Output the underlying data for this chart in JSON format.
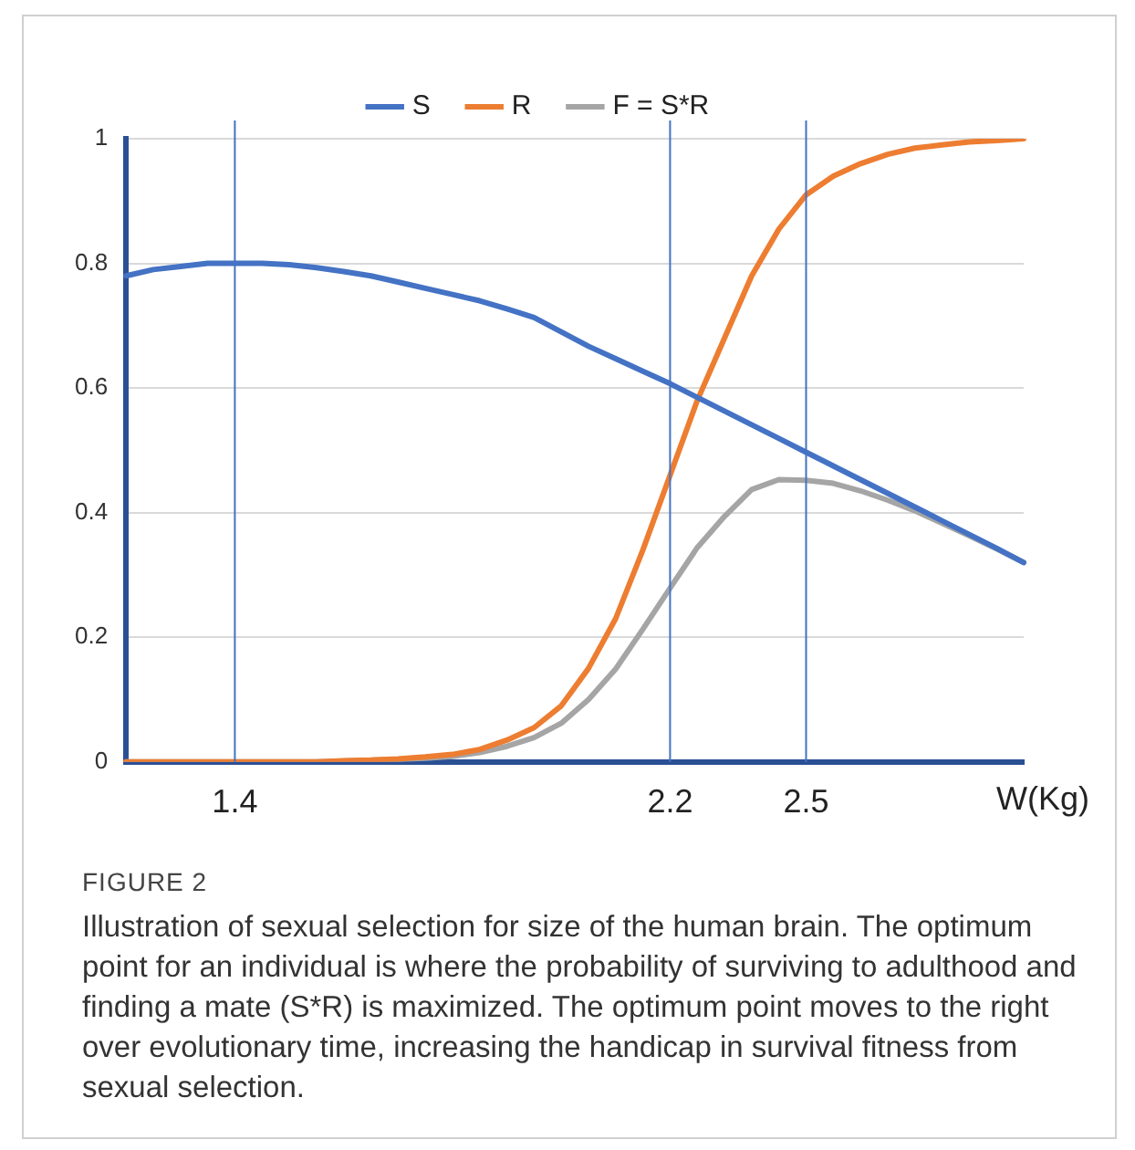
{
  "chart_data": {
    "type": "line",
    "xlabel": "W(Kg)",
    "categories": [
      null,
      null,
      null,
      null,
      "1.4",
      null,
      null,
      null,
      null,
      null,
      null,
      null,
      null,
      null,
      null,
      null,
      null,
      null,
      null,
      null,
      "2.2",
      null,
      null,
      null,
      null,
      "2.5",
      null,
      null,
      null,
      null,
      null,
      null,
      null,
      null
    ],
    "series": [
      {
        "name": "S",
        "color": "#4472c4",
        "values": [
          0.78,
          0.79,
          0.795,
          0.8,
          0.8,
          0.8,
          0.798,
          0.793,
          0.787,
          0.78,
          0.77,
          0.76,
          0.75,
          0.74,
          0.727,
          0.713,
          0.69,
          0.667,
          0.647,
          0.627,
          0.607,
          0.585,
          0.563,
          0.541,
          0.519,
          0.497,
          0.475,
          0.453,
          0.431,
          0.409,
          0.387,
          0.365,
          0.343,
          0.32
        ]
      },
      {
        "name": "R",
        "color": "#ed7d31",
        "values": [
          0,
          0,
          0,
          0,
          0,
          0,
          0,
          0,
          0.002,
          0.003,
          0.005,
          0.008,
          0.012,
          0.02,
          0.035,
          0.055,
          0.09,
          0.15,
          0.23,
          0.34,
          0.46,
          0.58,
          0.68,
          0.78,
          0.855,
          0.91,
          0.94,
          0.96,
          0.975,
          0.985,
          0.99,
          0.995,
          0.997,
          1.0
        ]
      },
      {
        "name": "F = S*R",
        "color": "#a5a5a5",
        "values": [
          0,
          0,
          0,
          0,
          0,
          0,
          0,
          0,
          null,
          null,
          0.004,
          0.006,
          0.009,
          0.015,
          0.025,
          0.039,
          0.062,
          0.1,
          0.149,
          0.213,
          0.279,
          0.344,
          0.394,
          0.437,
          0.453,
          0.452,
          0.447,
          0.435,
          0.42,
          0.403,
          0.383,
          0.363,
          0.342,
          0.32
        ]
      }
    ],
    "ylim": [
      0,
      1
    ],
    "yticks": [
      0,
      0.2,
      0.4,
      0.6,
      0.8,
      1
    ],
    "grid": "y",
    "legend": "top",
    "marker": "none",
    "line_style": "solid",
    "ref_lines": [
      {
        "axis": "x",
        "value": "1.4",
        "color": "#4472c4"
      },
      {
        "axis": "x",
        "value": "2.2",
        "color": "#4472c4"
      },
      {
        "axis": "x",
        "value": "2.5",
        "color": "#4472c4"
      }
    ],
    "annotations": [
      "FIGURE 2",
      "Illustration of sexual selection for size of the human brain. The optimum point for an individual is where the probability of surviving to adulthood and finding a mate (S*R) is maximized. The optimum point moves to the right over evolutionary time, increasing the handicap in survival fitness from sexual selection."
    ]
  }
}
